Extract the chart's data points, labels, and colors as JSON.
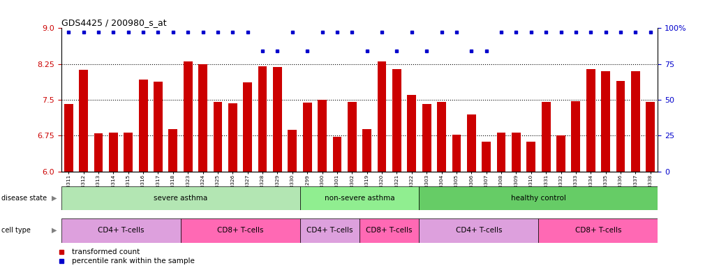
{
  "title": "GDS4425 / 200980_s_at",
  "samples": [
    "GSM788311",
    "GSM788312",
    "GSM788313",
    "GSM788314",
    "GSM788315",
    "GSM788316",
    "GSM788317",
    "GSM788318",
    "GSM788323",
    "GSM788324",
    "GSM788325",
    "GSM788326",
    "GSM788327",
    "GSM788328",
    "GSM788329",
    "GSM788330",
    "GSM7882299",
    "GSM788300",
    "GSM788301",
    "GSM788302",
    "GSM788319",
    "GSM788320",
    "GSM788321",
    "GSM788322",
    "GSM788303",
    "GSM788304",
    "GSM788305",
    "GSM788306",
    "GSM788307",
    "GSM788308",
    "GSM788309",
    "GSM788310",
    "GSM788331",
    "GSM788332",
    "GSM788333",
    "GSM788334",
    "GSM788335",
    "GSM788336",
    "GSM788337",
    "GSM788338"
  ],
  "bar_values": [
    7.42,
    8.13,
    6.8,
    6.82,
    6.82,
    7.92,
    7.88,
    6.88,
    8.3,
    8.25,
    7.46,
    7.43,
    7.87,
    8.2,
    8.19,
    6.87,
    7.44,
    7.5,
    6.72,
    7.45,
    6.89,
    8.3,
    8.14,
    7.6,
    7.42,
    7.45,
    6.77,
    7.2,
    6.62,
    6.82,
    6.82,
    6.62,
    7.45,
    6.75,
    7.47,
    8.14,
    8.1,
    7.9,
    8.1,
    7.45
  ],
  "percentile_values": [
    97,
    97,
    97,
    97,
    97,
    97,
    97,
    97,
    97,
    97,
    97,
    97,
    97,
    84,
    84,
    97,
    84,
    97,
    97,
    97,
    84,
    97,
    84,
    97,
    84,
    97,
    97,
    84,
    84,
    97,
    97,
    97,
    97,
    97,
    97,
    97,
    97,
    97,
    97,
    97
  ],
  "ylim_left": [
    6.0,
    9.0
  ],
  "ylim_right": [
    0,
    100
  ],
  "yticks_left": [
    6.0,
    6.75,
    7.5,
    8.25,
    9.0
  ],
  "yticks_right": [
    0,
    25,
    50,
    75,
    100
  ],
  "bar_color": "#CC0000",
  "dot_color": "#0000CC",
  "disease_state_groups": [
    {
      "label": "severe asthma",
      "start": 0,
      "end": 16,
      "color": "#b3e6b3"
    },
    {
      "label": "non-severe asthma",
      "start": 16,
      "end": 24,
      "color": "#90EE90"
    },
    {
      "label": "healthy control",
      "start": 24,
      "end": 40,
      "color": "#66CC66"
    }
  ],
  "cell_type_groups": [
    {
      "label": "CD4+ T-cells",
      "start": 0,
      "end": 8,
      "color": "#DDA0DD"
    },
    {
      "label": "CD8+ T-cells",
      "start": 8,
      "end": 16,
      "color": "#FF69B4"
    },
    {
      "label": "CD4+ T-cells",
      "start": 16,
      "end": 20,
      "color": "#DDA0DD"
    },
    {
      "label": "CD8+ T-cells",
      "start": 20,
      "end": 24,
      "color": "#FF69B4"
    },
    {
      "label": "CD4+ T-cells",
      "start": 24,
      "end": 32,
      "color": "#DDA0DD"
    },
    {
      "label": "CD8+ T-cells",
      "start": 32,
      "end": 40,
      "color": "#FF69B4"
    }
  ],
  "legend_items": [
    {
      "label": "transformed count",
      "color": "#CC0000"
    },
    {
      "label": "percentile rank within the sample",
      "color": "#0000CC"
    }
  ],
  "fig_width": 10.3,
  "fig_height": 3.84
}
